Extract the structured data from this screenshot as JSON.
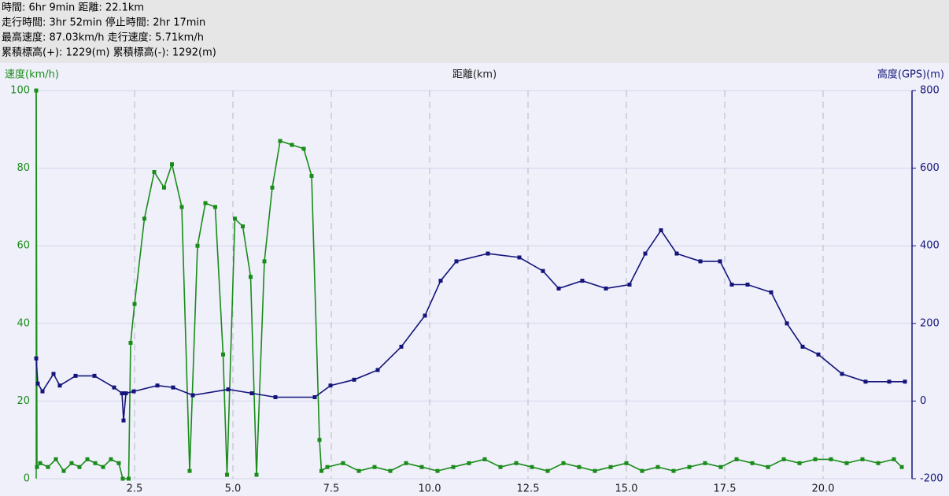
{
  "header": [
    "時間: 6hr 9min 距離: 22.1km",
    "走行時間: 3hr 52min 停止時間: 2hr 17min",
    "最高速度: 87.03km/h 走行速度: 5.71km/h",
    "累積標高(+): 1229(m) 累積標高(-): 1292(m)"
  ],
  "chart_data": {
    "type": "line",
    "y_label": "速度(km/h)",
    "x_label": "距離(km)",
    "y2_label": "高度(GPS)(m)",
    "xlim": [
      0,
      22.26
    ],
    "xticks": [
      2.5,
      {
        "value": 5,
        "label": "5.0"
      },
      7.5,
      {
        "value": 10,
        "label": "10.0"
      },
      12.5,
      {
        "value": 15,
        "label": "15.0"
      },
      17.5,
      {
        "value": 20,
        "label": "20.0"
      }
    ],
    "ylim": [
      0,
      100
    ],
    "yticks": [
      0,
      20,
      40,
      60,
      80,
      100
    ],
    "y2lim": [
      -200,
      800
    ],
    "y2ticks": [
      -200,
      0,
      200,
      400,
      600,
      800
    ],
    "grid": true,
    "series": [
      {
        "color": "#1a8c1a",
        "x": [
          0,
          0.02,
          0.1,
          0.3,
          0.5,
          0.7,
          0.9,
          1.1,
          1.3,
          1.5,
          1.7,
          1.9,
          2.1,
          2.2,
          2.35,
          2.4,
          2.5,
          2.75,
          3.0,
          3.25,
          3.45,
          3.7,
          3.9,
          4.1,
          4.3,
          4.55,
          4.75,
          4.85,
          5.05,
          5.25,
          5.45,
          5.6,
          5.8,
          6.0,
          6.2,
          6.5,
          6.8,
          7.0,
          7.2,
          7.25,
          7.4,
          7.8,
          8.2,
          8.6,
          9.0,
          9.4,
          9.8,
          10.2,
          10.6,
          11.0,
          11.4,
          11.8,
          12.2,
          12.6,
          13.0,
          13.4,
          13.8,
          14.2,
          14.6,
          15.0,
          15.4,
          15.8,
          16.2,
          16.6,
          17.0,
          17.4,
          17.8,
          18.2,
          18.6,
          19.0,
          19.4,
          19.8,
          20.2,
          20.6,
          21.0,
          21.4,
          21.8,
          22.0
        ],
        "values": [
          100,
          3,
          4,
          3,
          5,
          2,
          4,
          3,
          5,
          4,
          3,
          5,
          4,
          0,
          0,
          35,
          45,
          67,
          79,
          75,
          81,
          70,
          2,
          60,
          71,
          70,
          32,
          1,
          67,
          65,
          52,
          1,
          56,
          75,
          87,
          86,
          85,
          78,
          10,
          2,
          3,
          4,
          2,
          3,
          2,
          4,
          3,
          2,
          3,
          4,
          5,
          3,
          4,
          3,
          2,
          4,
          3,
          2,
          3,
          4,
          2,
          3,
          2,
          3,
          4,
          3,
          5,
          4,
          3,
          5,
          4,
          5,
          5,
          4,
          5,
          4,
          5,
          3
        ]
      },
      {
        "color": "#14147a",
        "axis": "y2",
        "x": [
          0,
          0.04,
          0.16,
          0.44,
          0.6,
          1.0,
          1.48,
          1.98,
          2.18,
          2.22,
          2.28,
          2.48,
          3.08,
          3.48,
          3.98,
          4.88,
          5.48,
          6.08,
          7.08,
          7.48,
          8.08,
          8.68,
          9.28,
          9.88,
          10.28,
          10.68,
          11.48,
          12.28,
          12.88,
          13.28,
          13.88,
          14.48,
          15.08,
          15.48,
          15.88,
          16.28,
          16.88,
          17.38,
          17.68,
          18.08,
          18.68,
          19.08,
          19.48,
          19.88,
          20.48,
          21.08,
          21.68,
          22.08
        ],
        "values": [
          110,
          45,
          25,
          70,
          40,
          65,
          65,
          35,
          20,
          -50,
          20,
          25,
          40,
          35,
          15,
          30,
          20,
          10,
          10,
          40,
          55,
          80,
          140,
          220,
          310,
          360,
          380,
          370,
          335,
          290,
          310,
          290,
          300,
          380,
          440,
          380,
          360,
          360,
          300,
          300,
          280,
          200,
          140,
          120,
          70,
          50,
          50,
          50
        ]
      }
    ]
  }
}
